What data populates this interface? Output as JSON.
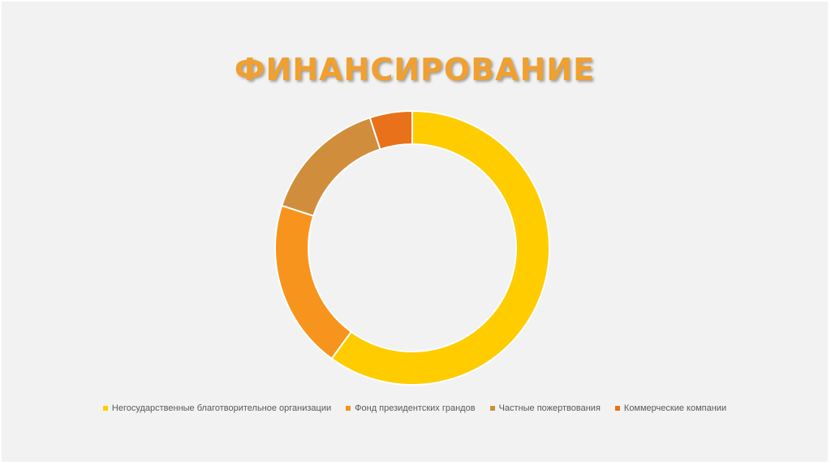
{
  "slide": {
    "title": "ФИНАНСИРОВАНИЕ"
  },
  "chart_data": {
    "type": "pie",
    "subtype": "doughnut",
    "title": "",
    "categories": [
      "Негосударственные благотворительное организации",
      "Фонд президентских грандов",
      "Частные пожертвования",
      "Коммерческие компании"
    ],
    "values": [
      60,
      20,
      15,
      5
    ],
    "colors": [
      "#ffcc00",
      "#f7941d",
      "#d08e3c",
      "#e8711a"
    ],
    "legend": "bottom"
  }
}
